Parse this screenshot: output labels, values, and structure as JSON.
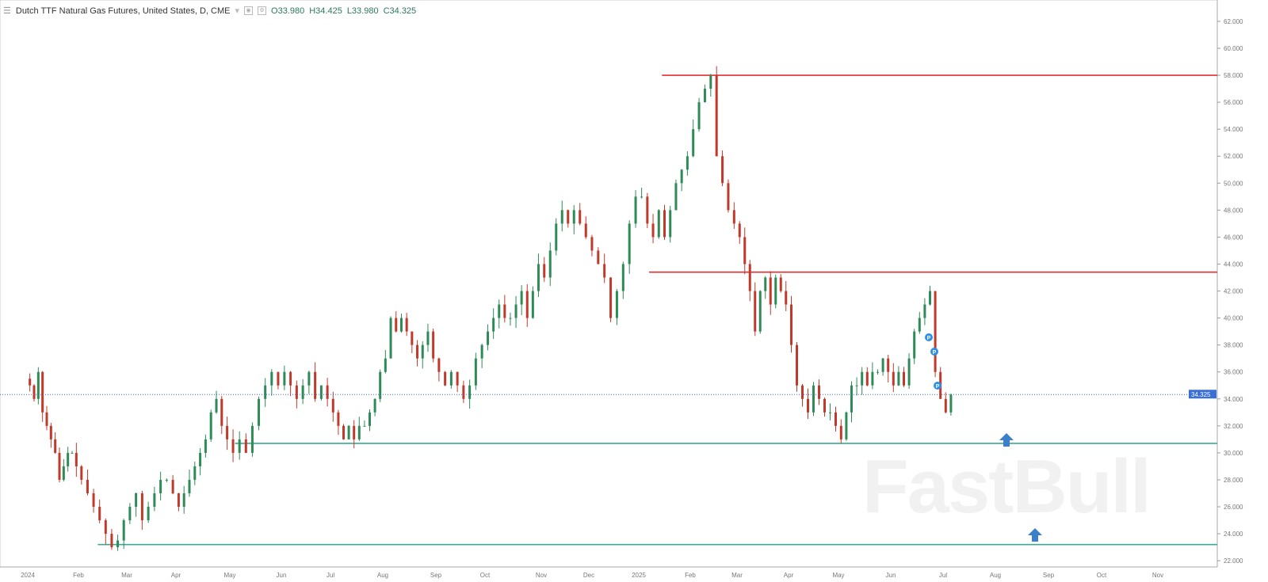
{
  "header": {
    "title": "Dutch TTF Natural Gas Futures, United States, D, CME",
    "open": "O33.980",
    "high": "H34.425",
    "low": "L33.980",
    "close": "C34.325"
  },
  "watermark": "FastBull",
  "chart_data": {
    "type": "candlestick",
    "ylim": [
      21,
      63
    ],
    "y_ticks": [
      "22.000",
      "24.000",
      "26.000",
      "28.000",
      "30.000",
      "32.000",
      "34.000",
      "36.000",
      "38.000",
      "40.000",
      "42.000",
      "44.000",
      "46.000",
      "48.000",
      "50.000",
      "52.000",
      "54.000",
      "56.000",
      "58.000",
      "60.000",
      "62.000"
    ],
    "last_price": "34.325",
    "months": [
      {
        "label": "2024",
        "closes": [
          35,
          34,
          36,
          33,
          32,
          31,
          30,
          28,
          29,
          30,
          30,
          29
        ]
      },
      {
        "label": "Feb",
        "closes": [
          28,
          27,
          26,
          25,
          24,
          23,
          23.5,
          25
        ]
      },
      {
        "label": "Mar",
        "closes": [
          26,
          27,
          25,
          26,
          27,
          28,
          28,
          27
        ]
      },
      {
        "label": "Apr",
        "closes": [
          26,
          27,
          28,
          29,
          30,
          31,
          33,
          34,
          32,
          31
        ]
      },
      {
        "label": "May",
        "closes": [
          30,
          31,
          30,
          32,
          34,
          35,
          36,
          35
        ]
      },
      {
        "label": "Jun",
        "closes": [
          36,
          35,
          34,
          35,
          36,
          34,
          35,
          34
        ]
      },
      {
        "label": "Jul",
        "closes": [
          33,
          32,
          31,
          32,
          31,
          32,
          32,
          33,
          34,
          36
        ]
      },
      {
        "label": "Aug",
        "closes": [
          37,
          40,
          39,
          40,
          39,
          38,
          37,
          38,
          39,
          37
        ]
      },
      {
        "label": "Sep",
        "closes": [
          36,
          35,
          36,
          35,
          34,
          35,
          37,
          38
        ]
      },
      {
        "label": "Oct",
        "closes": [
          39,
          40,
          41,
          40,
          40,
          41,
          42,
          40,
          42,
          44
        ]
      },
      {
        "label": "Nov",
        "closes": [
          43,
          45,
          47,
          48,
          47,
          48,
          47,
          46
        ]
      },
      {
        "label": "Dec",
        "closes": [
          45,
          44,
          43,
          40,
          42,
          44,
          47,
          49
        ]
      },
      {
        "label": "2025",
        "closes": [
          49,
          47,
          46,
          48,
          46,
          48,
          50,
          51,
          52
        ]
      },
      {
        "label": "Feb",
        "closes": [
          54,
          56,
          57,
          58,
          52,
          50,
          48,
          47
        ]
      },
      {
        "label": "Mar",
        "closes": [
          46,
          44,
          42,
          39,
          42,
          43,
          41,
          43,
          42,
          41
        ]
      },
      {
        "label": "Apr",
        "closes": [
          38,
          35,
          34,
          33,
          35,
          34,
          33,
          33,
          32
        ]
      },
      {
        "label": "May",
        "closes": [
          31,
          33,
          35,
          35,
          36,
          35,
          36,
          36,
          37,
          36
        ]
      },
      {
        "label": "Jun",
        "closes": [
          35,
          36,
          35,
          37,
          39,
          40,
          41,
          42,
          36,
          34
        ]
      },
      {
        "label": "Jul",
        "closes": [
          33,
          34.325
        ]
      },
      {
        "label": "Aug",
        "closes": []
      },
      {
        "label": "Sep",
        "closes": []
      },
      {
        "label": "Oct",
        "closes": []
      },
      {
        "label": "Nov",
        "closes": []
      }
    ],
    "levels": [
      {
        "price": 58.0,
        "color": "#e03030",
        "from_month": 12.45,
        "kind": "resistance"
      },
      {
        "price": 43.4,
        "color": "#e03030",
        "from_month": 12.2,
        "kind": "resistance"
      },
      {
        "price": 30.7,
        "color": "#3aaa94",
        "from_month": 4.1,
        "kind": "support"
      },
      {
        "price": 23.2,
        "color": "#3aaa94",
        "from_month": 1.4,
        "kind": "support"
      }
    ],
    "colors": {
      "up": "#2e8b57",
      "down": "#c0392b",
      "last_price": "#3b6fd8",
      "marker": "#2d8fe8",
      "arrow": "#3a7fc8"
    }
  }
}
